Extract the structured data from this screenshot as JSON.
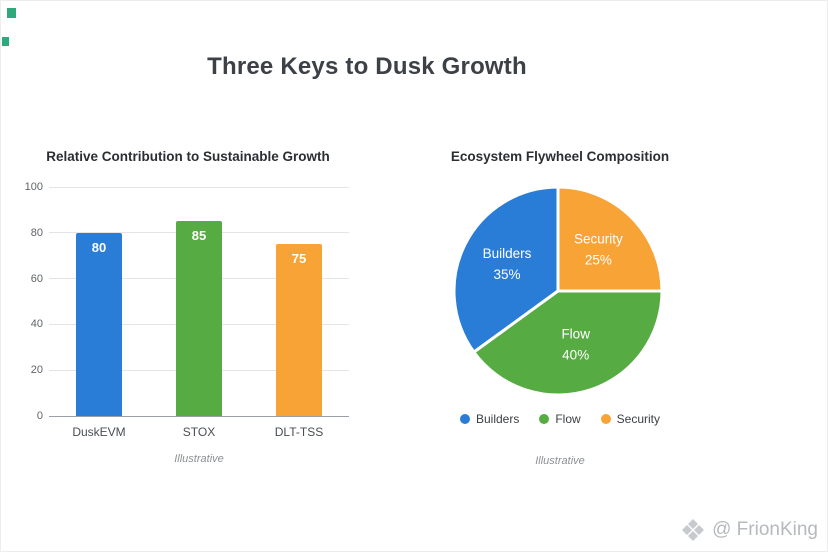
{
  "page": {
    "title": "Three Keys to Dusk Growth",
    "watermark_text": "@ FrionKing"
  },
  "chart_data": [
    {
      "type": "bar",
      "title": "Relative Contribution to Sustainable Growth",
      "caption": "Illustrative",
      "categories": [
        "DuskEVM",
        "STOX",
        "DLT-TSS"
      ],
      "values": [
        80,
        85,
        75
      ],
      "bar_colors": [
        "#2a7dd6",
        "#57ab43",
        "#f7a335"
      ],
      "value_label_color": "#ffffff",
      "ylim": [
        0,
        100
      ],
      "yticks": [
        0,
        20,
        40,
        60,
        80,
        100
      ],
      "grid": true,
      "legend_position": "none"
    },
    {
      "type": "pie",
      "title": "Ecosystem Flywheel Composition",
      "caption": "Illustrative",
      "slices": [
        {
          "label": "Builders",
          "value": 35,
          "color": "#2a7dd6"
        },
        {
          "label": "Flow",
          "value": 40,
          "color": "#57ab43"
        },
        {
          "label": "Security",
          "value": 25,
          "color": "#f7a335"
        }
      ],
      "legend": [
        "Builders",
        "Flow",
        "Security"
      ],
      "legend_position": "bottom",
      "slice_label_color": "#ffffff"
    }
  ]
}
